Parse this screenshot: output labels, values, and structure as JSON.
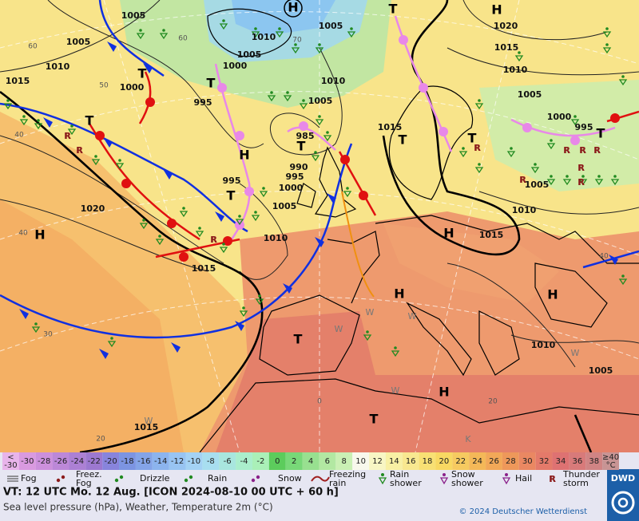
{
  "map": {
    "pressure_labels": [
      "1005",
      "1005",
      "1010",
      "1005",
      "1005",
      "1000",
      "1010",
      "1015",
      "1000",
      "995",
      "1010",
      "1005",
      "1015",
      "985",
      "990",
      "995",
      "995",
      "1000",
      "1005",
      "1010",
      "1020",
      "1015",
      "1020",
      "1015",
      "1010",
      "1005",
      "1000",
      "995",
      "1005",
      "1010",
      "1015",
      "1010",
      "1005",
      "1015"
    ],
    "centers": [
      "H",
      "H",
      "H",
      "H",
      "H",
      "H",
      "H",
      "H",
      "T",
      "T",
      "T",
      "T",
      "T",
      "T",
      "T",
      "T",
      "T",
      "T",
      "T"
    ],
    "grid_labels": [
      "60",
      "50",
      "40",
      "40",
      "30",
      "20",
      "0",
      "20",
      "40",
      "70",
      "60"
    ],
    "weather_letters": [
      "W",
      "W",
      "W",
      "W",
      "W",
      "W",
      "K"
    ]
  },
  "scale": {
    "low": {
      "top": "<",
      "bottom": "-30"
    },
    "cells": [
      {
        "label": -30,
        "color": "#d99ae0"
      },
      {
        "label": -28,
        "color": "#cc90dc"
      },
      {
        "label": -26,
        "color": "#bc88d8"
      },
      {
        "label": -24,
        "color": "#ac80d4"
      },
      {
        "label": -22,
        "color": "#9c78d0"
      },
      {
        "label": -20,
        "color": "#8884dc"
      },
      {
        "label": -18,
        "color": "#7c94e2"
      },
      {
        "label": -16,
        "color": "#84a4e8"
      },
      {
        "label": -14,
        "color": "#8cb4ee"
      },
      {
        "label": -12,
        "color": "#98c4f2"
      },
      {
        "label": -10,
        "color": "#a4d2f4"
      },
      {
        "label": -8,
        "color": "#a8def0"
      },
      {
        "label": -6,
        "color": "#a8e6de"
      },
      {
        "label": -4,
        "color": "#aaeecc"
      },
      {
        "label": -2,
        "color": "#aaf0b8"
      },
      {
        "label": 0,
        "color": "#5ccc5c"
      },
      {
        "label": 2,
        "color": "#78d878"
      },
      {
        "label": 4,
        "color": "#98e090"
      },
      {
        "label": 6,
        "color": "#b2e8a2"
      },
      {
        "label": 8,
        "color": "#caf0b4"
      },
      {
        "label": 10,
        "color": "#f8f8ec"
      },
      {
        "label": 12,
        "color": "#f8f6c4"
      },
      {
        "label": 14,
        "color": "#f8f0a4"
      },
      {
        "label": 16,
        "color": "#f8e890"
      },
      {
        "label": 18,
        "color": "#f8e074"
      },
      {
        "label": 20,
        "color": "#f8d862"
      },
      {
        "label": 22,
        "color": "#f6ca60"
      },
      {
        "label": 24,
        "color": "#f4b858"
      },
      {
        "label": 26,
        "color": "#f2a858"
      },
      {
        "label": 28,
        "color": "#ee985a"
      },
      {
        "label": 30,
        "color": "#ea8862"
      },
      {
        "label": 32,
        "color": "#e47a6a"
      },
      {
        "label": 34,
        "color": "#de7272"
      },
      {
        "label": 36,
        "color": "#d87a7a"
      },
      {
        "label": 38,
        "color": "#d08484"
      }
    ],
    "high": {
      "top": "≥40",
      "bottom": "°C"
    },
    "low_color": "#e8b4ea",
    "high_color": "#c89494"
  },
  "legend": [
    {
      "lines": [
        "Fog"
      ]
    },
    {
      "lines": [
        "Freez.",
        "Fog"
      ]
    },
    {
      "lines": [
        "Drizzle"
      ]
    },
    {
      "lines": [
        "Rain"
      ]
    },
    {
      "lines": [
        "Snow"
      ]
    },
    {
      "lines": [
        "Freezing",
        "rain"
      ]
    },
    {
      "lines": [
        "Rain",
        "shower"
      ]
    },
    {
      "lines": [
        "Snow",
        "shower"
      ]
    },
    {
      "lines": [
        "Hail"
      ]
    },
    {
      "lines": [
        "Thunder",
        "storm"
      ]
    }
  ],
  "footer": {
    "valid_time": "VT: 12 UTC Mo.  12 Aug. [ICON 2024-08-10  00 UTC + 60 h]",
    "description": "Sea level pressure (hPa), Weather, Temperature 2m (°C)",
    "copyright": "© 2024 Deutscher Wetterdienst",
    "logo": "DWD"
  }
}
